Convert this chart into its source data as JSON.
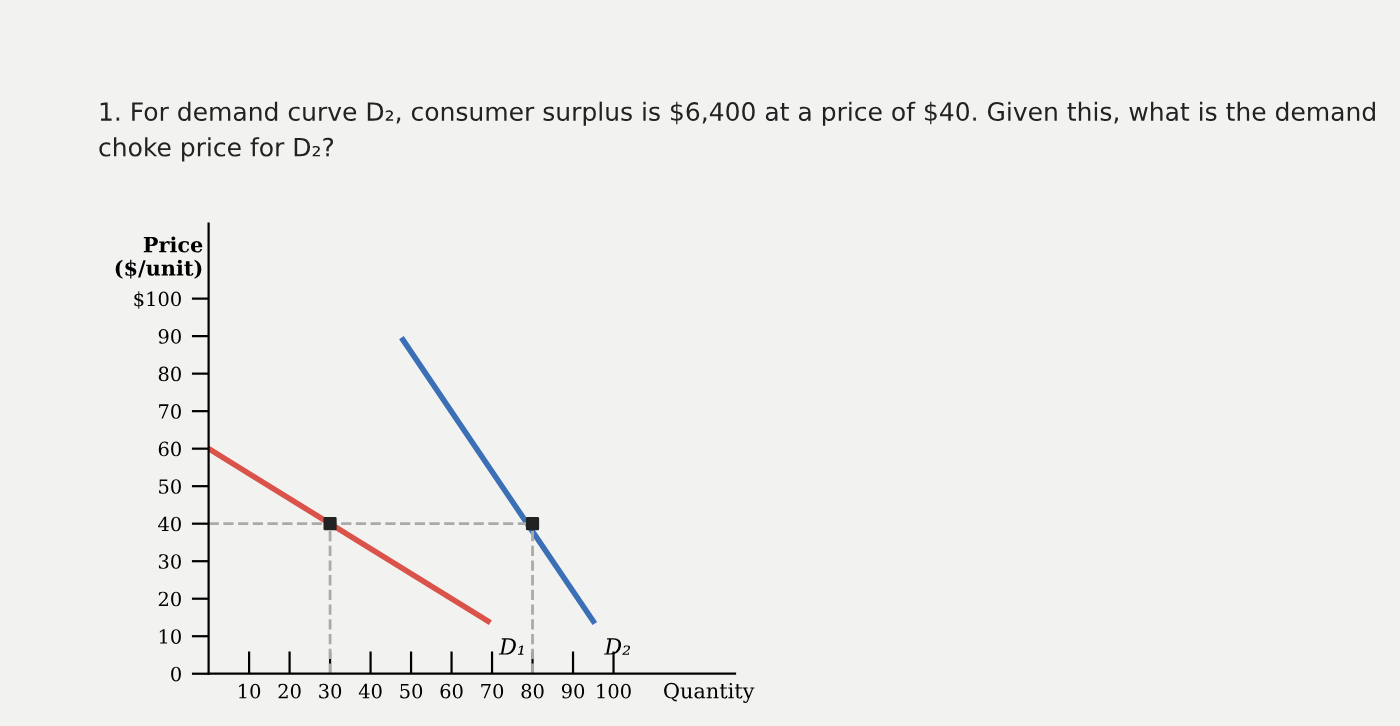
{
  "chart_data": {
    "type": "line",
    "title": "1. For demand curve D₂, consumer surplus is $6,400 at a price of $40. Given this, what is the demand\nchoke price for D₂?",
    "xlabel": "Quantity",
    "ylabel": "Price\n($/unit)",
    "series": [
      {
        "color": "#d9534a",
        "x": [
          0,
          69
        ],
        "values": [
          60,
          14
        ]
      },
      {
        "color": "#3b6fb6",
        "x": [
          48,
          95
        ],
        "values": [
          89,
          14
        ]
      },
      {
        "color": "#aaaaaa",
        "line_style": "dashed",
        "x": [
          0,
          80
        ],
        "values": [
          40,
          40
        ]
      },
      {
        "color": "#aaaaaa",
        "line_style": "dashed",
        "x": [
          30,
          30
        ],
        "values": [
          0,
          40
        ]
      },
      {
        "color": "#aaaaaa",
        "line_style": "dashed",
        "x": [
          80,
          80
        ],
        "values": [
          0,
          40
        ]
      },
      {
        "type": "scatter",
        "color": "#222222",
        "marker": "square",
        "x": [
          30,
          80
        ],
        "values": [
          40,
          40
        ]
      }
    ],
    "annotations": [
      {
        "text": "D₁",
        "x": 69,
        "y": 14
      },
      {
        "text": "D₂",
        "x": 95,
        "y": 14
      }
    ],
    "xlim": [
      0,
      130
    ],
    "ylim": [
      0,
      120
    ],
    "xticks": [
      10,
      20,
      30,
      40,
      50,
      60,
      70,
      80,
      90,
      100
    ],
    "yticks": [
      {
        "value": 0,
        "label": "0"
      },
      10,
      20,
      30,
      40,
      50,
      60,
      70,
      80,
      90,
      {
        "value": 100,
        "label": "$100"
      }
    ],
    "grid": false,
    "legend": false
  }
}
